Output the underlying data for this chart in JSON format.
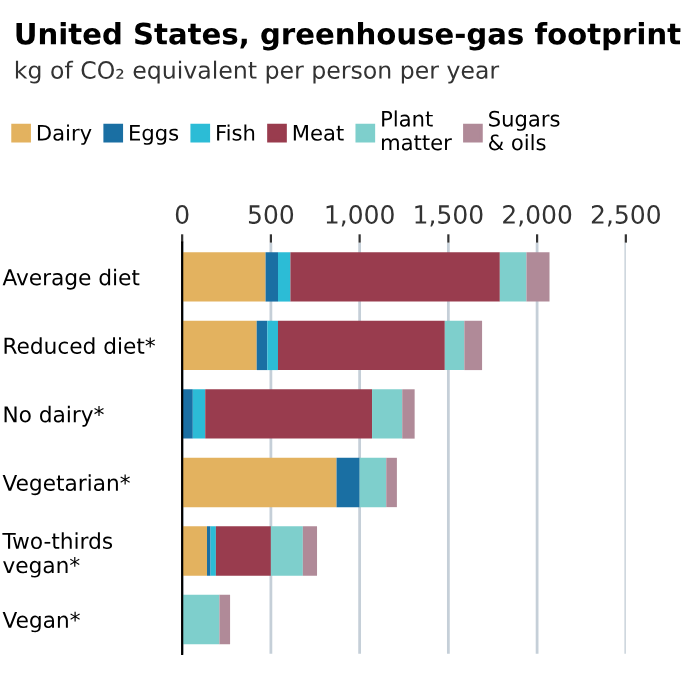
{
  "chart_data": {
    "type": "bar",
    "orientation": "horizontal",
    "stacked": true,
    "title": "United States, greenhouse-gas footprint",
    "subtitle": "kg of CO₂ equivalent per person per year",
    "categories": [
      "Average diet",
      "Reduced diet*",
      "No dairy*",
      "Vegetarian*",
      "Two-thirds\nvegan*",
      "Vegan*"
    ],
    "series": [
      {
        "name": "Dairy",
        "color": "#e3b25f",
        "values": [
          470,
          420,
          0,
          870,
          140,
          0
        ]
      },
      {
        "name": "Eggs",
        "color": "#1a6fa3",
        "values": [
          70,
          60,
          60,
          130,
          20,
          0
        ]
      },
      {
        "name": "Fish",
        "color": "#2cbcd6",
        "values": [
          70,
          60,
          70,
          0,
          30,
          0
        ]
      },
      {
        "name": "Meat",
        "color": "#993c4e",
        "values": [
          1180,
          940,
          940,
          0,
          310,
          0
        ]
      },
      {
        "name": "Plant\nmatter",
        "color": "#7ecfcc",
        "values": [
          150,
          110,
          170,
          150,
          180,
          210
        ]
      },
      {
        "name": "Sugars\n& oils",
        "color": "#b08a98",
        "values": [
          130,
          100,
          70,
          60,
          80,
          60
        ]
      }
    ],
    "xlim": [
      0,
      2500
    ],
    "xticks": [
      0,
      500,
      {
        "value": 1000,
        "label": "1,000"
      },
      {
        "value": 1500,
        "label": "1,500"
      },
      {
        "value": 2000,
        "label": "2,000"
      },
      {
        "value": 2500,
        "label": "2,500"
      }
    ],
    "grid": "x",
    "legend": "top"
  }
}
